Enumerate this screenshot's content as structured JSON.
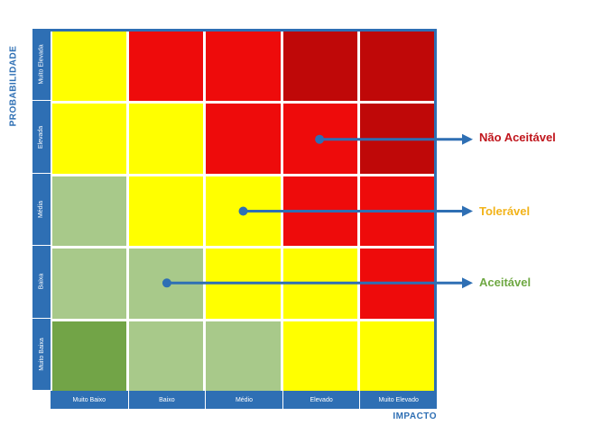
{
  "matrix": {
    "y_axis_title": "PROBABILIDADE",
    "x_axis_title": "IMPACTO",
    "rows": [
      "Muito Elevada",
      "Elevada",
      "Média",
      "Baixa",
      "Muito Baixa"
    ],
    "columns": [
      "Muito Baixo",
      "Baixo",
      "Médio",
      "Elevado",
      "Muito Elevado"
    ],
    "cells": [
      [
        "tol",
        "na",
        "na",
        "na2",
        "na2"
      ],
      [
        "tol",
        "tol",
        "na",
        "na",
        "na2"
      ],
      [
        "ac",
        "tol",
        "tol",
        "na",
        "na"
      ],
      [
        "ac",
        "ac",
        "tol",
        "tol",
        "na"
      ],
      [
        "ac2",
        "ac",
        "ac",
        "tol",
        "tol"
      ]
    ]
  },
  "colors": {
    "axis": "#2e6fb4",
    "na": "#ee0b0b",
    "na2": "#bf0808",
    "tol": "#ffff00",
    "ac": "#a8c98a",
    "ac2": "#72a447",
    "arrow": "#2e6fb4"
  },
  "legend": [
    {
      "label": "Não Aceitável",
      "color": "#c0151c",
      "cell": [
        1,
        3
      ]
    },
    {
      "label": "Tolerável",
      "color": "#f2b319",
      "cell": [
        2,
        2
      ]
    },
    {
      "label": "Aceitável",
      "color": "#6fa843",
      "cell": [
        3,
        1
      ]
    }
  ]
}
